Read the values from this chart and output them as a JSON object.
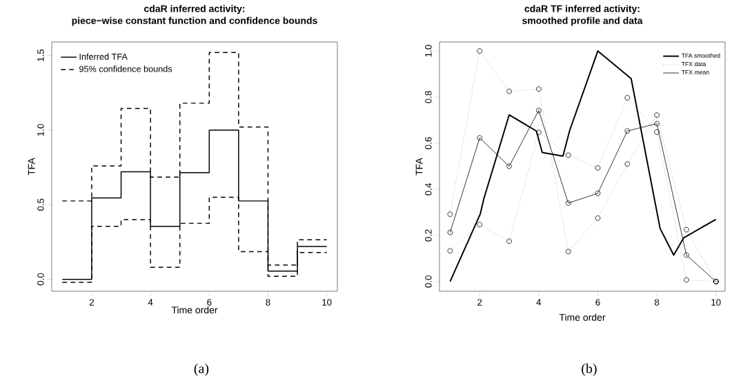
{
  "chart_data": [
    {
      "type": "step",
      "title": "cdaR inferred activity:",
      "subtitle": "piece−wise constant function and confidence bounds",
      "xlabel": "Time order",
      "ylabel": "TFA",
      "annotations": [
        "(a)"
      ],
      "x": [
        1,
        2,
        3,
        4,
        5,
        6,
        7,
        8,
        9,
        10
      ],
      "series": [
        {
          "name": "Inferred TFA",
          "color": "#000000",
          "line_style": "solid",
          "values": [
            0.0,
            0.545,
            0.72,
            0.355,
            0.715,
            1.0,
            0.525,
            0.055,
            0.22,
            0.22
          ]
        },
        {
          "name": "95% confidence bounds",
          "color": "#000000",
          "line_style": "dashed",
          "values": [
            0.525,
            0.76,
            1.145,
            0.685,
            1.18,
            1.52,
            1.02,
            0.095,
            0.265,
            0.265
          ]
        },
        {
          "color": "#000000",
          "line_style": "dashed",
          "values": [
            -0.02,
            0.355,
            0.4,
            0.08,
            0.375,
            0.55,
            0.185,
            0.02,
            0.18,
            0.18
          ]
        }
      ],
      "xlim": [
        0.64,
        10.36
      ],
      "ylim": [
        -0.08,
        1.59
      ],
      "xticks": [
        2,
        4,
        6,
        8,
        10
      ],
      "yticks": [
        {
          "value": 0,
          "label": "0.0"
        },
        {
          "value": 0.5,
          "label": "0.5"
        },
        {
          "value": 1,
          "label": "1.0"
        },
        {
          "value": 1.5,
          "label": "1.5"
        }
      ],
      "legend": "top left"
    },
    {
      "type": "line",
      "title": "cdaR TF inferred activity:",
      "subtitle": "smoothed profile and data",
      "xlabel": "Time order",
      "ylabel": "TFA",
      "annotations": [
        "(b)"
      ],
      "x": [
        1,
        2,
        3,
        4,
        5,
        6,
        7,
        8,
        9,
        10
      ],
      "series": [
        {
          "name": "TFA smoothed",
          "color": "#000000",
          "line_style": "solid",
          "marker": "none",
          "x": [
            1,
            2.02,
            2.14,
            3,
            3.92,
            4.12,
            4.82,
            5.05,
            6,
            7.13,
            8.11,
            8.57,
            8.91,
            10
          ],
          "values": [
            0.0,
            0.293,
            0.358,
            0.723,
            0.653,
            0.56,
            0.544,
            0.656,
            1.0,
            0.88,
            0.23,
            0.115,
            0.19,
            0.27
          ]
        },
        {
          "name": "TFX data",
          "color": "#808080",
          "line_style": "dotted",
          "marker": "circle",
          "values": [
            0.292,
            1.0,
            0.825,
            0.835,
            0.13,
            0.275,
            0.51,
            0.722,
            0.225,
            0.0
          ]
        },
        {
          "color": "#808080",
          "line_style": "dotted",
          "marker": "circle",
          "values": [
            0.133,
            0.247,
            0.175,
            0.647,
            0.548,
            0.493,
            0.797,
            0.648,
            0.007,
            0.0
          ]
        },
        {
          "name": "TFX mean",
          "color": "#000000",
          "line_style": "solid",
          "marker": "circle",
          "values": [
            0.213,
            0.623,
            0.5,
            0.742,
            0.34,
            0.383,
            0.653,
            0.685,
            0.115,
            0.0
          ]
        }
      ],
      "xlim": [
        0.64,
        10.31
      ],
      "ylim": [
        -0.042,
        1.039
      ],
      "xticks": [
        2,
        4,
        6,
        8,
        10
      ],
      "yticks": [
        {
          "value": 0,
          "label": "0.0"
        },
        {
          "value": 0.2,
          "label": "0.2"
        },
        {
          "value": 0.4,
          "label": "0.4"
        },
        {
          "value": 0.6,
          "label": "0.6"
        },
        {
          "value": 0.8,
          "label": "0.8"
        },
        {
          "value": 1,
          "label": "1.0"
        }
      ],
      "legend": "top right"
    }
  ]
}
